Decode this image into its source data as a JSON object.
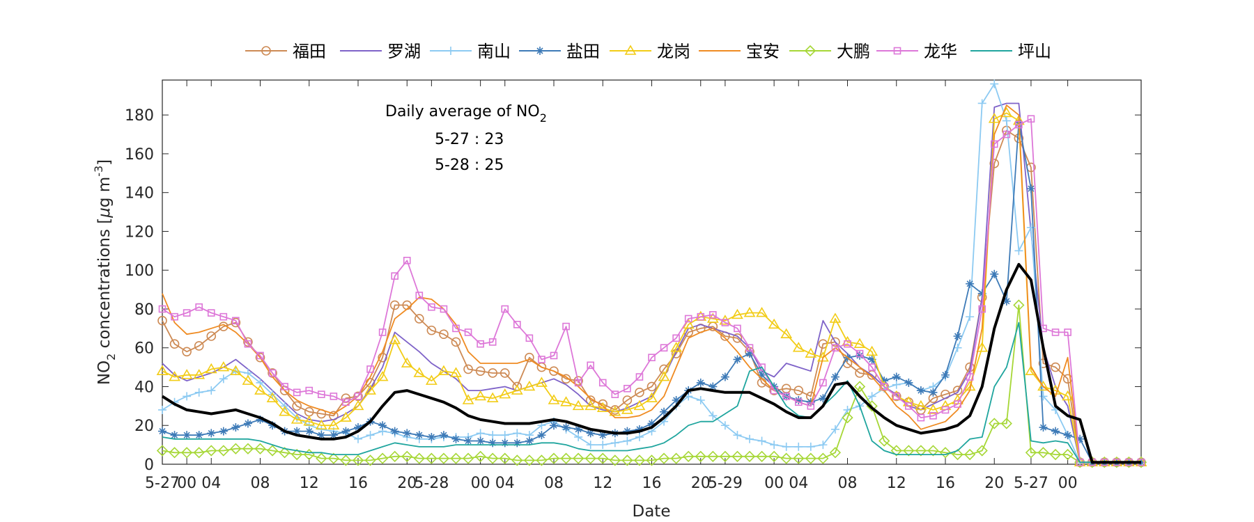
{
  "chart_data": {
    "type": "line",
    "xlabel": "Date",
    "ylabel_main": "NO",
    "ylabel_sub": "2",
    "ylabel_rest": " concentrations [",
    "ylabel_mu": "μ",
    "ylabel_unit": "g m",
    "ylabel_sup": "-3",
    "ylabel_close": "]",
    "ylim": [
      0,
      198
    ],
    "xlim": [
      0,
      80
    ],
    "yticks": [
      0,
      20,
      40,
      60,
      80,
      100,
      120,
      140,
      160,
      180
    ],
    "xticks": [
      {
        "x": 0,
        "label": "5-27"
      },
      {
        "x": 2,
        "label": "00"
      },
      {
        "x": 4,
        "label": "04"
      },
      {
        "x": 8,
        "label": "08"
      },
      {
        "x": 12,
        "label": "12"
      },
      {
        "x": 16,
        "label": "16"
      },
      {
        "x": 20,
        "label": "20"
      },
      {
        "x": 22,
        "label": "5-28"
      },
      {
        "x": 26,
        "label": "00"
      },
      {
        "x": 28,
        "label": "04"
      },
      {
        "x": 32,
        "label": "08"
      },
      {
        "x": 36,
        "label": "12"
      },
      {
        "x": 40,
        "label": "16"
      },
      {
        "x": 44,
        "label": "20"
      },
      {
        "x": 46,
        "label": "5-29"
      },
      {
        "x": 50,
        "label": "00"
      },
      {
        "x": 52,
        "label": "04"
      },
      {
        "x": 56,
        "label": "08"
      },
      {
        "x": 60,
        "label": "12"
      },
      {
        "x": 64,
        "label": "16"
      },
      {
        "x": 68,
        "label": "20"
      },
      {
        "x": 71,
        "label": "5-27"
      },
      {
        "x": 74,
        "label": "00"
      }
    ],
    "grid": false,
    "legend_position": "top",
    "annotation": {
      "line1_main": "Daily average of NO",
      "line1_sub": "2",
      "line2": "5-27 : 23",
      "line3": "5-28 : 25"
    },
    "series": [
      {
        "name": "福田",
        "color": "#cd8a54",
        "marker": "circle",
        "values": [
          74,
          62,
          58,
          61,
          66,
          71,
          73,
          63,
          55,
          47,
          38,
          30,
          27,
          26,
          25,
          34,
          35,
          42,
          55,
          82,
          82,
          75,
          69,
          67,
          63,
          49,
          48,
          47,
          47,
          40,
          55,
          50,
          48,
          44,
          43,
          33,
          31,
          28,
          33,
          37,
          40,
          49,
          57,
          68,
          70,
          71,
          66,
          65,
          58,
          42,
          38,
          39,
          38,
          35,
          62,
          63,
          52,
          47,
          46,
          40,
          35,
          32,
          28,
          34,
          36,
          38,
          50,
          86,
          155,
          172,
          168,
          153,
          52,
          50,
          44,
          1,
          1,
          1,
          1,
          1,
          1
        ]
      },
      {
        "name": "罗湖",
        "color": "#7e62c8",
        "marker": "none",
        "values": [
          52,
          46,
          43,
          45,
          47,
          50,
          54,
          49,
          44,
          38,
          32,
          26,
          23,
          22,
          23,
          26,
          30,
          39,
          50,
          68,
          63,
          58,
          52,
          48,
          44,
          38,
          38,
          39,
          40,
          38,
          40,
          42,
          44,
          41,
          36,
          30,
          28,
          27,
          29,
          32,
          35,
          45,
          58,
          70,
          72,
          70,
          68,
          66,
          60,
          48,
          45,
          52,
          50,
          48,
          74,
          63,
          57,
          50,
          46,
          40,
          36,
          30,
          28,
          31,
          34,
          37,
          48,
          86,
          184,
          186,
          186,
          120,
          60,
          40,
          30,
          1,
          1,
          1,
          1,
          1,
          1
        ]
      },
      {
        "name": "南山",
        "color": "#8ccaf2",
        "marker": "plus",
        "values": [
          28,
          32,
          35,
          37,
          38,
          44,
          48,
          47,
          42,
          36,
          30,
          24,
          20,
          18,
          17,
          16,
          13,
          15,
          17,
          16,
          14,
          13,
          13,
          14,
          14,
          14,
          16,
          15,
          15,
          16,
          15,
          20,
          22,
          18,
          14,
          10,
          10,
          11,
          12,
          14,
          17,
          22,
          30,
          35,
          33,
          25,
          20,
          15,
          13,
          12,
          10,
          9,
          9,
          9,
          10,
          18,
          28,
          30,
          35,
          39,
          41,
          42,
          38,
          40,
          45,
          60,
          76,
          186,
          196,
          177,
          110,
          122,
          35,
          28,
          15,
          1,
          1,
          1,
          1,
          1,
          1
        ]
      },
      {
        "name": "盐田",
        "color": "#3d7ab7",
        "marker": "star",
        "values": [
          17,
          15,
          15,
          15,
          16,
          17,
          19,
          21,
          23,
          20,
          17,
          17,
          17,
          15,
          15,
          17,
          19,
          22,
          20,
          17,
          16,
          15,
          14,
          15,
          13,
          12,
          12,
          11,
          11,
          11,
          12,
          15,
          20,
          19,
          18,
          16,
          15,
          16,
          17,
          18,
          21,
          27,
          33,
          38,
          42,
          40,
          45,
          54,
          57,
          46,
          40,
          35,
          33,
          32,
          34,
          45,
          55,
          56,
          54,
          43,
          45,
          42,
          38,
          37,
          46,
          66,
          93,
          88,
          98,
          84,
          176,
          142,
          19,
          17,
          15,
          13,
          1,
          1,
          1,
          1,
          1
        ]
      },
      {
        "name": "龙岗",
        "color": "#f2cc16",
        "marker": "triangle",
        "values": [
          48,
          45,
          46,
          46,
          49,
          50,
          48,
          43,
          38,
          34,
          27,
          23,
          22,
          20,
          20,
          24,
          30,
          38,
          45,
          64,
          52,
          47,
          43,
          48,
          47,
          33,
          35,
          34,
          36,
          38,
          40,
          42,
          33,
          32,
          30,
          30,
          29,
          27,
          28,
          30,
          34,
          45,
          60,
          72,
          76,
          75,
          74,
          77,
          78,
          78,
          72,
          67,
          60,
          57,
          55,
          75,
          63,
          62,
          58,
          40,
          35,
          32,
          30,
          28,
          30,
          33,
          40,
          60,
          178,
          181,
          177,
          48,
          40,
          38,
          35,
          1,
          1,
          1,
          1,
          1,
          1
        ]
      },
      {
        "name": "宝安",
        "color": "#ef8b22",
        "marker": "none",
        "values": [
          88,
          73,
          67,
          68,
          70,
          72,
          68,
          62,
          55,
          45,
          38,
          33,
          30,
          28,
          26,
          30,
          35,
          45,
          58,
          75,
          80,
          86,
          85,
          80,
          72,
          58,
          52,
          52,
          52,
          52,
          54,
          50,
          48,
          45,
          40,
          34,
          30,
          24,
          24,
          25,
          28,
          35,
          50,
          65,
          68,
          70,
          65,
          58,
          50,
          44,
          38,
          35,
          32,
          30,
          55,
          60,
          55,
          50,
          45,
          38,
          30,
          25,
          18,
          20,
          22,
          28,
          38,
          70,
          170,
          185,
          180,
          50,
          40,
          35,
          55,
          1,
          1,
          1,
          1,
          1,
          1
        ]
      },
      {
        "name": "大鹏",
        "color": "#a6d736",
        "marker": "diamond",
        "values": [
          7,
          6,
          6,
          6,
          7,
          7,
          8,
          8,
          8,
          7,
          6,
          5,
          5,
          3,
          3,
          2,
          2,
          2,
          3,
          4,
          4,
          3,
          3,
          3,
          3,
          3,
          4,
          3,
          3,
          2,
          2,
          2,
          3,
          3,
          3,
          3,
          3,
          2,
          2,
          2,
          2,
          3,
          3,
          4,
          4,
          4,
          4,
          4,
          4,
          4,
          4,
          3,
          3,
          3,
          3,
          6,
          24,
          40,
          30,
          12,
          7,
          7,
          7,
          7,
          6,
          5,
          5,
          7,
          21,
          21,
          82,
          6,
          6,
          5,
          5,
          1,
          1,
          1,
          1,
          1,
          1
        ]
      },
      {
        "name": "龙华",
        "color": "#dd77d8",
        "marker": "square",
        "values": [
          80,
          76,
          78,
          81,
          78,
          76,
          74,
          62,
          56,
          47,
          40,
          37,
          38,
          36,
          35,
          32,
          35,
          49,
          68,
          97,
          105,
          87,
          81,
          80,
          70,
          68,
          62,
          63,
          80,
          72,
          65,
          54,
          56,
          71,
          42,
          51,
          42,
          36,
          39,
          45,
          55,
          60,
          65,
          75,
          76,
          77,
          73,
          70,
          60,
          50,
          38,
          35,
          32,
          30,
          42,
          60,
          62,
          57,
          50,
          40,
          35,
          30,
          24,
          25,
          28,
          31,
          45,
          80,
          165,
          170,
          175,
          178,
          70,
          68,
          68,
          1,
          1,
          1,
          1,
          1,
          1
        ]
      },
      {
        "name": "坪山",
        "color": "#1fa59e",
        "marker": "none",
        "values": [
          14,
          13,
          13,
          13,
          13,
          13,
          13,
          13,
          12,
          10,
          8,
          7,
          6,
          6,
          5,
          5,
          5,
          7,
          9,
          11,
          10,
          9,
          9,
          9,
          10,
          10,
          10,
          10,
          10,
          10,
          10,
          11,
          11,
          10,
          8,
          7,
          7,
          7,
          7,
          8,
          9,
          11,
          15,
          20,
          22,
          22,
          26,
          30,
          48,
          50,
          40,
          30,
          25,
          24,
          30,
          36,
          43,
          30,
          12,
          7,
          5,
          5,
          5,
          5,
          5,
          7,
          13,
          14,
          40,
          50,
          73,
          12,
          11,
          12,
          11,
          1,
          1,
          1,
          1,
          1,
          1
        ]
      },
      {
        "name": "",
        "color": "#000000",
        "marker": "none",
        "width": 4,
        "values": [
          35,
          31,
          28,
          27,
          26,
          27,
          28,
          26,
          24,
          21,
          17,
          15,
          14,
          13,
          13,
          14,
          17,
          22,
          30,
          37,
          38,
          36,
          34,
          32,
          29,
          25,
          23,
          22,
          21,
          21,
          21,
          22,
          23,
          22,
          20,
          18,
          17,
          16,
          16,
          17,
          19,
          24,
          30,
          38,
          39,
          38,
          37,
          37,
          37,
          34,
          31,
          27,
          24,
          24,
          30,
          41,
          42,
          35,
          29,
          24,
          20,
          18,
          16,
          17,
          18,
          20,
          25,
          40,
          70,
          90,
          103,
          95,
          60,
          30,
          25,
          23,
          1,
          1,
          1,
          1,
          1
        ]
      }
    ]
  }
}
